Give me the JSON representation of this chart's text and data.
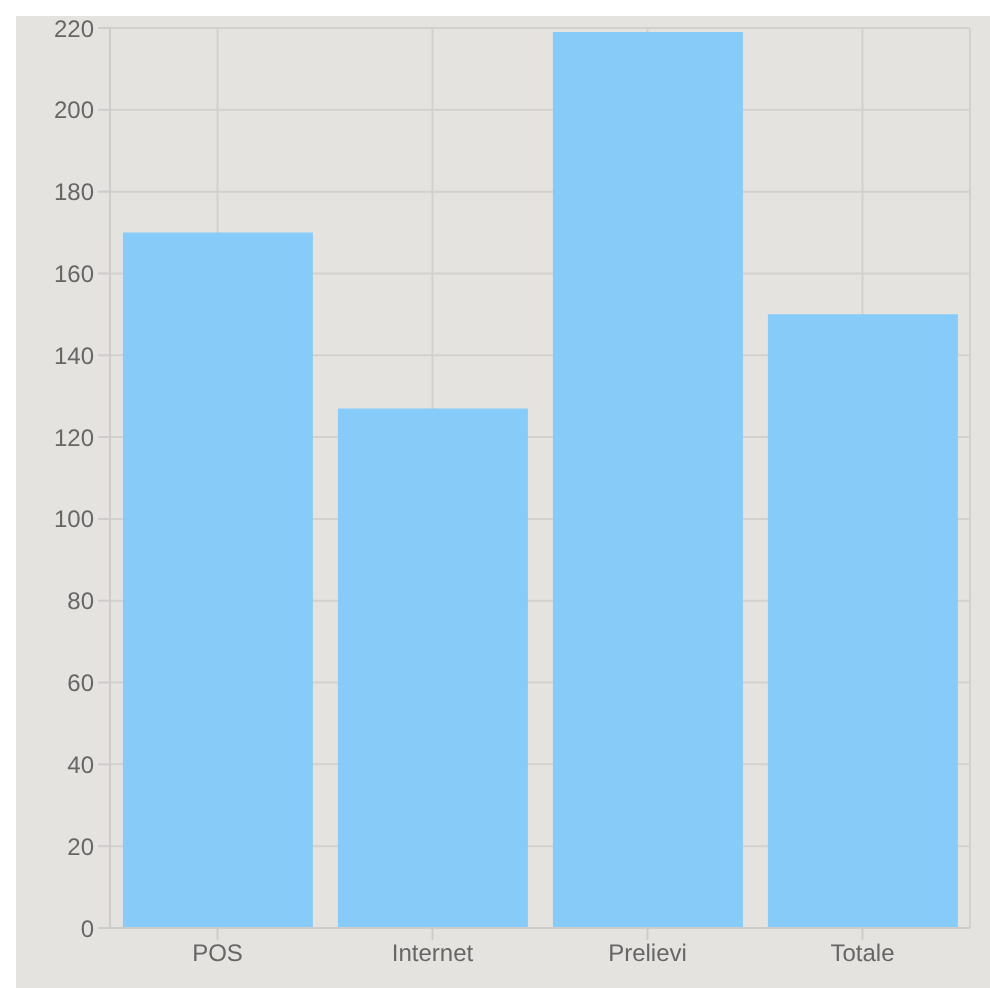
{
  "chart_data": {
    "type": "bar",
    "categories": [
      "POS",
      "Internet",
      "Prelievi",
      "Totale"
    ],
    "values": [
      170,
      127,
      219,
      150
    ],
    "color": "#87cbf8",
    "ylim": [
      0,
      220
    ],
    "yticks": [
      0,
      20,
      40,
      60,
      80,
      100,
      120,
      140,
      160,
      180,
      200,
      220
    ],
    "grid": true
  }
}
